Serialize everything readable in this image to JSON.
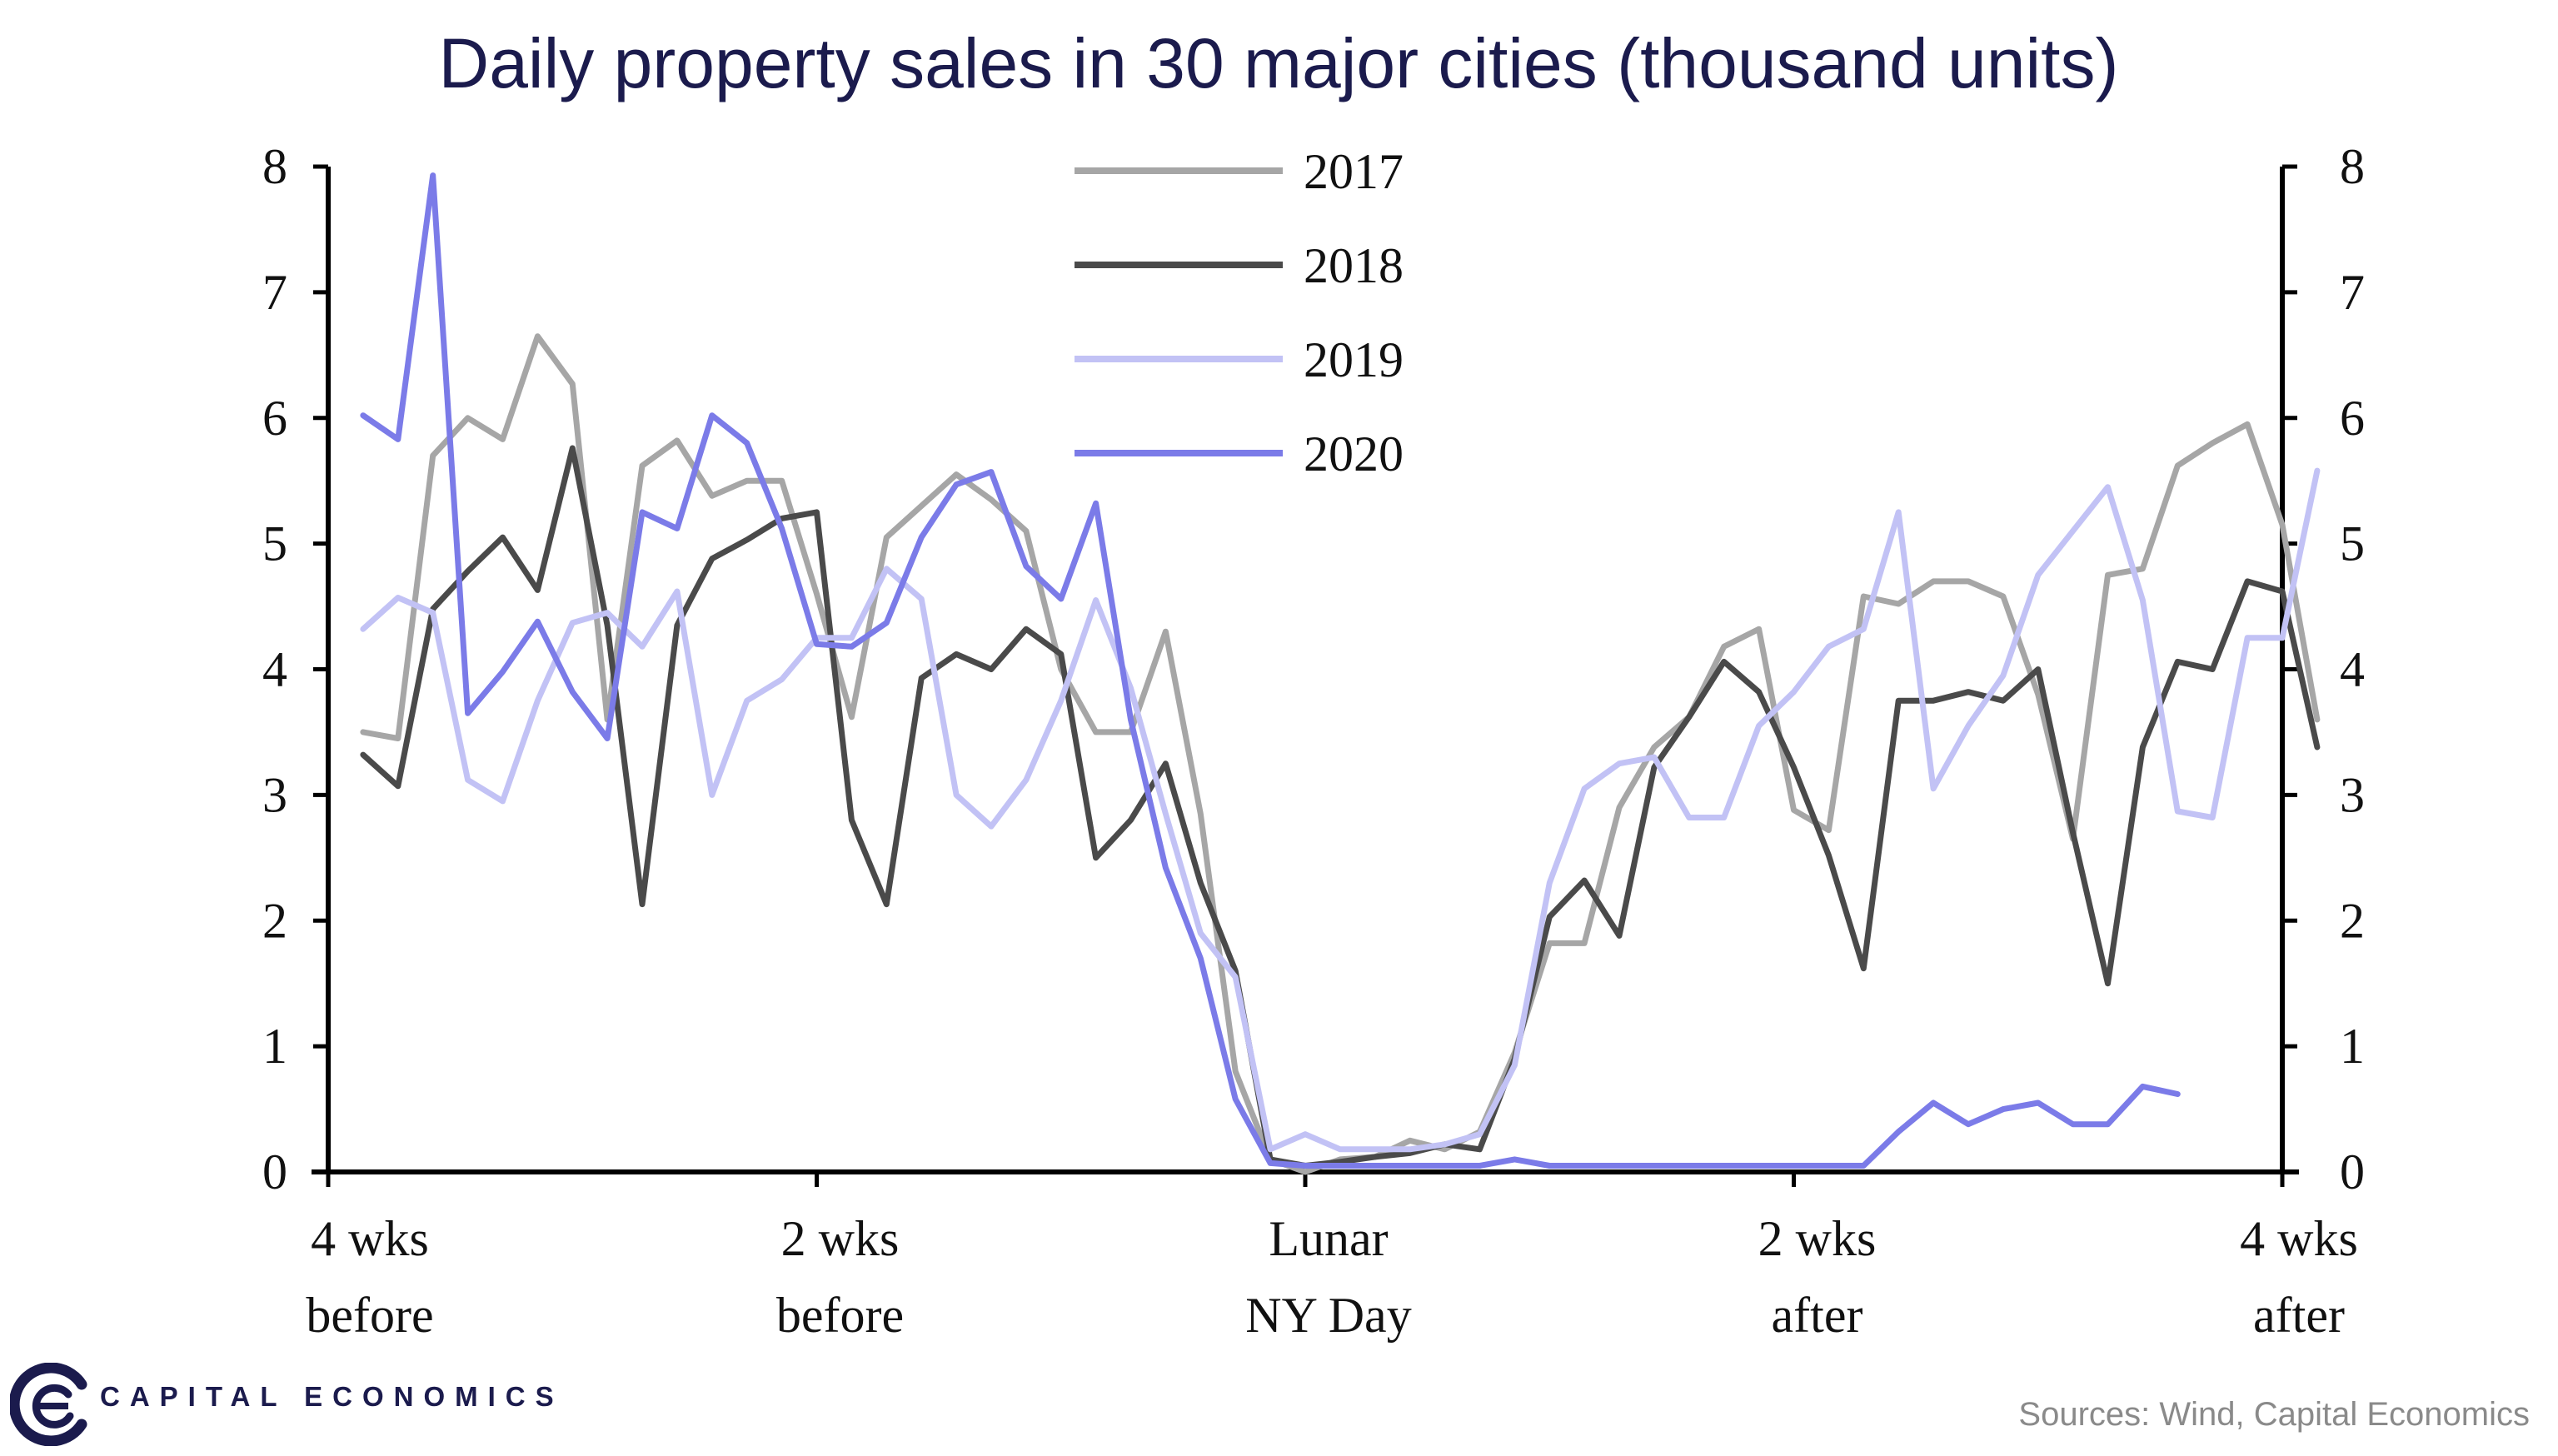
{
  "branding": {
    "company": "CAPITAL ECONOMICS",
    "source": "Sources: Wind, Capital Economics",
    "brand_color": "#1b1b4d"
  },
  "chart_data": {
    "type": "line",
    "title": "Daily property sales in 30 major cities (thousand units)",
    "xlabel": "",
    "ylabel": "",
    "ylim": [
      0,
      8
    ],
    "yticks": [
      "0",
      "1",
      "2",
      "3",
      "4",
      "5",
      "6",
      "7",
      "8"
    ],
    "x_range_days": [
      -28,
      28
    ],
    "x_ticks": [
      {
        "day": -28,
        "lines": [
          "4 wks",
          "before"
        ]
      },
      {
        "day": -14,
        "lines": [
          "2 wks",
          "before"
        ]
      },
      {
        "day": 0,
        "lines": [
          "Lunar",
          "NY Day"
        ]
      },
      {
        "day": 14,
        "lines": [
          "2 wks",
          "after"
        ]
      },
      {
        "day": 28,
        "lines": [
          "4 wks",
          "after"
        ]
      }
    ],
    "grid": false,
    "legend_position": "top-center",
    "series": [
      {
        "name": "2017",
        "color": "#a6a6a6",
        "start_day": -27,
        "values": [
          3.5,
          3.45,
          5.7,
          6.0,
          5.83,
          6.65,
          6.27,
          3.6,
          5.62,
          5.82,
          5.38,
          5.5,
          5.5,
          4.6,
          3.62,
          5.05,
          5.3,
          5.55,
          5.35,
          5.1,
          4.0,
          3.5,
          3.5,
          4.3,
          2.85,
          0.8,
          0.1,
          0.0,
          0.1,
          0.12,
          0.25,
          0.18,
          0.32,
          0.95,
          1.82,
          1.82,
          2.9,
          3.38,
          3.62,
          4.18,
          4.32,
          2.88,
          2.72,
          4.58,
          4.52,
          4.7,
          4.7,
          4.58,
          3.8,
          2.65,
          4.75,
          4.8,
          5.62,
          5.8,
          5.95,
          5.15,
          3.6
        ]
      },
      {
        "name": "2018",
        "color": "#4a4a4a",
        "start_day": -27,
        "values": [
          3.32,
          3.07,
          4.48,
          4.78,
          5.05,
          4.63,
          5.76,
          4.35,
          2.13,
          4.35,
          4.88,
          5.03,
          5.2,
          5.25,
          2.8,
          2.13,
          3.93,
          4.12,
          4.0,
          4.32,
          4.12,
          2.5,
          2.8,
          3.25,
          2.3,
          1.6,
          0.1,
          0.05,
          0.08,
          0.12,
          0.15,
          0.22,
          0.18,
          0.9,
          2.03,
          2.32,
          1.88,
          3.22,
          3.62,
          4.06,
          3.82,
          3.22,
          2.52,
          1.62,
          3.75,
          3.75,
          3.82,
          3.75,
          4.0,
          2.7,
          1.5,
          3.38,
          4.06,
          4.0,
          4.7,
          4.62,
          3.38
        ]
      },
      {
        "name": "2019",
        "color": "#c2c2f5",
        "start_day": -27,
        "values": [
          4.32,
          4.57,
          4.45,
          3.12,
          2.95,
          3.75,
          4.37,
          4.45,
          4.18,
          4.62,
          3.0,
          3.75,
          3.92,
          4.25,
          4.25,
          4.8,
          4.56,
          3.0,
          2.75,
          3.12,
          3.75,
          4.55,
          3.85,
          2.85,
          1.9,
          1.55,
          0.18,
          0.3,
          0.18,
          0.18,
          0.18,
          0.22,
          0.3,
          0.85,
          2.3,
          3.05,
          3.25,
          3.3,
          2.82,
          2.82,
          3.55,
          3.82,
          4.18,
          4.32,
          5.25,
          3.05,
          3.55,
          3.95,
          4.75,
          5.1,
          5.45,
          4.55,
          2.87,
          2.82,
          4.25,
          4.25,
          5.58
        ]
      },
      {
        "name": "2020",
        "color": "#7b7be8",
        "start_day": -27,
        "values": [
          6.02,
          5.83,
          7.93,
          3.65,
          3.98,
          4.38,
          3.82,
          3.45,
          5.25,
          5.12,
          6.02,
          5.8,
          5.12,
          4.2,
          4.18,
          4.37,
          5.05,
          5.47,
          5.57,
          4.82,
          4.56,
          5.32,
          3.6,
          2.42,
          1.7,
          0.58,
          0.07,
          0.05,
          0.05,
          0.05,
          0.05,
          0.05,
          0.05,
          0.1,
          0.05,
          0.05,
          0.05,
          0.05,
          0.05,
          0.05,
          0.05,
          0.05,
          0.05,
          0.05,
          0.32,
          0.55,
          0.38,
          0.5,
          0.55,
          0.38,
          0.38,
          0.68,
          0.62
        ]
      }
    ]
  }
}
